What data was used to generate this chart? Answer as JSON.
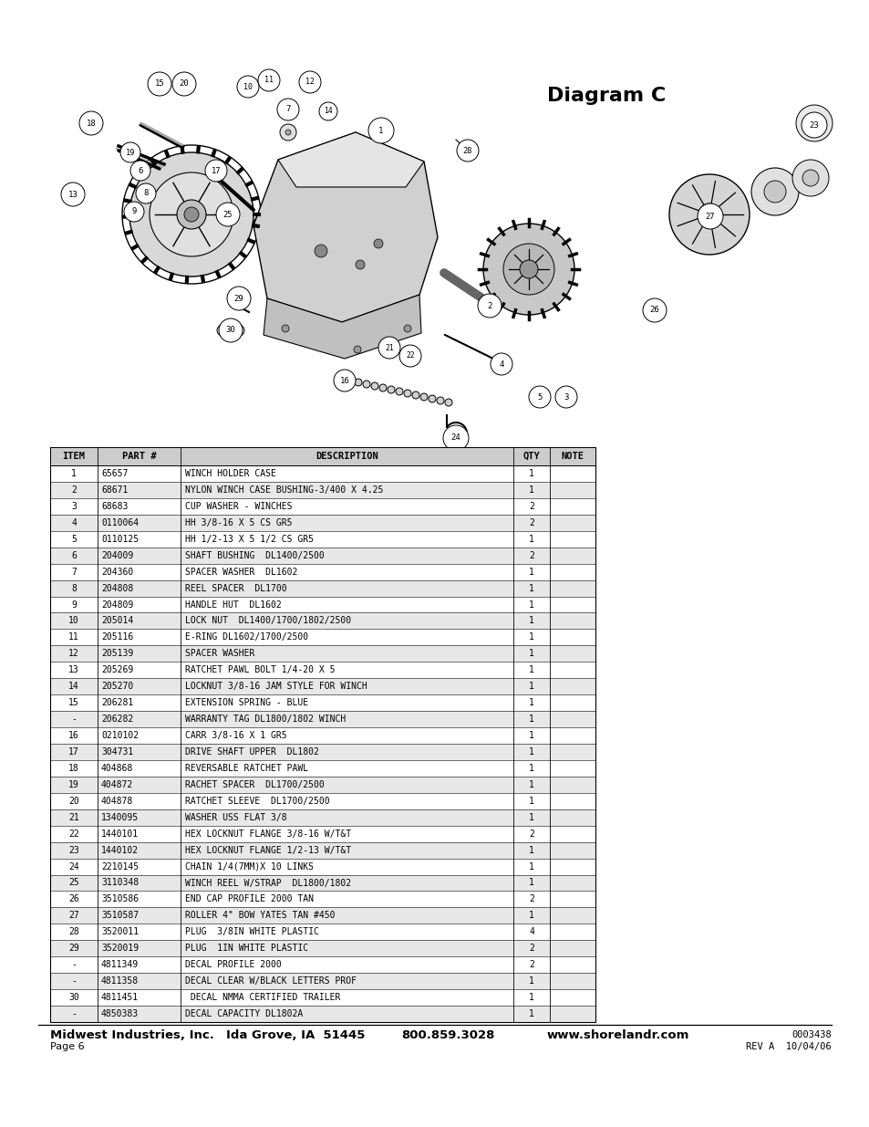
{
  "title": "Diagram C",
  "title_fontsize": 16,
  "title_fontweight": "bold",
  "table_headers": [
    "ITEM",
    "PART #",
    "DESCRIPTION",
    "QTY",
    "NOTE"
  ],
  "header_bg": "#cccccc",
  "row_bg_alt": "#e8e8e8",
  "row_bg_white": "#ffffff",
  "font_family": "monospace",
  "table_fontsize": 7.2,
  "rows": [
    [
      "1",
      "65657",
      "WINCH HOLDER CASE",
      "1",
      ""
    ],
    [
      "2",
      "68671",
      "NYLON WINCH CASE BUSHING-3/400 X 4.25",
      "1",
      ""
    ],
    [
      "3",
      "68683",
      "CUP WASHER - WINCHES",
      "2",
      ""
    ],
    [
      "4",
      "0110064",
      "HH 3/8-16 X 5 CS GR5",
      "2",
      ""
    ],
    [
      "5",
      "0110125",
      "HH 1/2-13 X 5 1/2 CS GR5",
      "1",
      ""
    ],
    [
      "6",
      "204009",
      "SHAFT BUSHING  DL1400/2500",
      "2",
      ""
    ],
    [
      "7",
      "204360",
      "SPACER WASHER  DL1602",
      "1",
      ""
    ],
    [
      "8",
      "204808",
      "REEL SPACER  DL1700",
      "1",
      ""
    ],
    [
      "9",
      "204809",
      "HANDLE HUT  DL1602",
      "1",
      ""
    ],
    [
      "10",
      "205014",
      "LOCK NUT  DL1400/1700/1802/2500",
      "1",
      ""
    ],
    [
      "11",
      "205116",
      "E-RING DL1602/1700/2500",
      "1",
      ""
    ],
    [
      "12",
      "205139",
      "SPACER WASHER",
      "1",
      ""
    ],
    [
      "13",
      "205269",
      "RATCHET PAWL BOLT 1/4-20 X 5",
      "1",
      ""
    ],
    [
      "14",
      "205270",
      "LOCKNUT 3/8-16 JAM STYLE FOR WINCH",
      "1",
      ""
    ],
    [
      "15",
      "206281",
      "EXTENSION SPRING - BLUE",
      "1",
      ""
    ],
    [
      "-",
      "206282",
      "WARRANTY TAG DL1800/1802 WINCH",
      "1",
      ""
    ],
    [
      "16",
      "0210102",
      "CARR 3/8-16 X 1 GR5",
      "1",
      ""
    ],
    [
      "17",
      "304731",
      "DRIVE SHAFT UPPER  DL1802",
      "1",
      ""
    ],
    [
      "18",
      "404868",
      "REVERSABLE RATCHET PAWL",
      "1",
      ""
    ],
    [
      "19",
      "404872",
      "RACHET SPACER  DL1700/2500",
      "1",
      ""
    ],
    [
      "20",
      "404878",
      "RATCHET SLEEVE  DL1700/2500",
      "1",
      ""
    ],
    [
      "21",
      "1340095",
      "WASHER USS FLAT 3/8",
      "1",
      ""
    ],
    [
      "22",
      "1440101",
      "HEX LOCKNUT FLANGE 3/8-16 W/T&T",
      "2",
      ""
    ],
    [
      "23",
      "1440102",
      "HEX LOCKNUT FLANGE 1/2-13 W/T&T",
      "1",
      ""
    ],
    [
      "24",
      "2210145",
      "CHAIN 1/4(7MM)X 10 LINKS",
      "1",
      ""
    ],
    [
      "25",
      "3110348",
      "WINCH REEL W/STRAP  DL1800/1802",
      "1",
      ""
    ],
    [
      "26",
      "3510586",
      "END CAP PROFILE 2000 TAN",
      "2",
      ""
    ],
    [
      "27",
      "3510587",
      "ROLLER 4\" BOW YATES TAN #450",
      "1",
      ""
    ],
    [
      "28",
      "3520011",
      "PLUG  3/8IN WHITE PLASTIC",
      "4",
      ""
    ],
    [
      "29",
      "3520019",
      "PLUG  1IN WHITE PLASTIC",
      "2",
      ""
    ],
    [
      "-",
      "4811349",
      "DECAL PROFILE 2000",
      "2",
      ""
    ],
    [
      "-",
      "4811358",
      "DECAL CLEAR W/BLACK LETTERS PROF",
      "1",
      ""
    ],
    [
      "30",
      "4811451",
      " DECAL NMMA CERTIFIED TRAILER",
      "1",
      ""
    ],
    [
      "-",
      "4850383",
      "DECAL CAPACITY DL1802A",
      "1",
      ""
    ]
  ],
  "footer_left1": "Midwest Industries, Inc.",
  "footer_left2": "Ida Grove, IA  51445",
  "footer_left3": "800.859.3028",
  "footer_left4": "www.shorelandr.com",
  "footer_right1": "0003438",
  "footer_right2": "REV A  10/04/06",
  "footer_page": "Page 6",
  "bg_color": "#ffffff"
}
